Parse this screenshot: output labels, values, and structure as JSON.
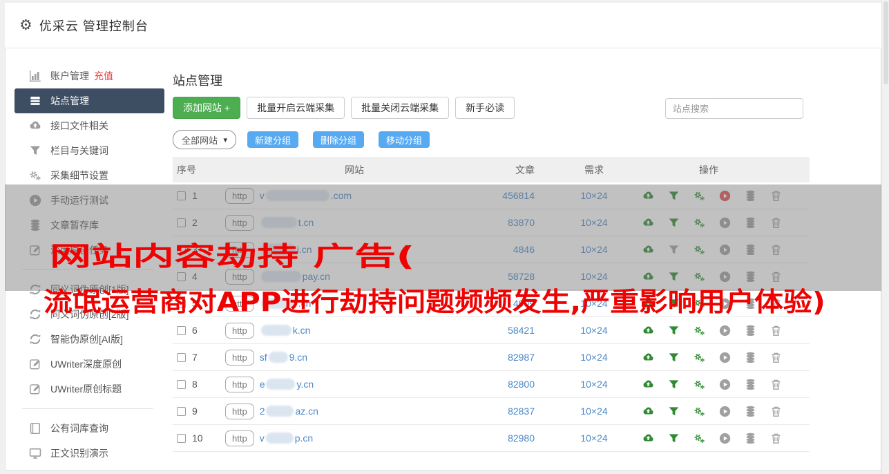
{
  "topbar": {
    "title": "优采云 管理控制台"
  },
  "sidebar": {
    "sections": [
      {
        "items": [
          {
            "icon": "bar-chart",
            "label": "账户管理",
            "extra": "充值"
          },
          {
            "icon": "list",
            "label": "站点管理",
            "active": true
          },
          {
            "icon": "cloud-upload",
            "label": "接口文件相关"
          },
          {
            "icon": "filter",
            "label": "栏目与关键词"
          },
          {
            "icon": "gears",
            "label": "采集细节设置"
          },
          {
            "icon": "play",
            "label": "手动运行测试"
          },
          {
            "icon": "database",
            "label": "文章暂存库"
          },
          {
            "icon": "edit",
            "label": "深度原创任务"
          }
        ]
      },
      {
        "items": [
          {
            "icon": "sync",
            "label": "同义词伪原创[1版]"
          },
          {
            "icon": "sync",
            "label": "同义词伪原创[2版]"
          },
          {
            "icon": "sync",
            "label": "智能伪原创[AI版]"
          },
          {
            "icon": "edit",
            "label": "UWriter深度原创"
          },
          {
            "icon": "edit",
            "label": "UWriter原创标题"
          }
        ]
      },
      {
        "items": [
          {
            "icon": "book",
            "label": "公有词库查询"
          },
          {
            "icon": "monitor",
            "label": "正文识别演示"
          }
        ]
      }
    ]
  },
  "main": {
    "page_title": "站点管理",
    "toolbar": {
      "add_site": "添加网站 +",
      "batch_open": "批量开启云端采集",
      "batch_close": "批量关闭云端采集",
      "newbie": "新手必读",
      "search_placeholder": "站点搜索"
    },
    "group_bar": {
      "filter_selected": "全部网站",
      "new_group": "新建分组",
      "delete_group": "删除分组",
      "move_group": "移动分组"
    },
    "table": {
      "columns": [
        "序号",
        "网站",
        "文章",
        "需求",
        "操作"
      ],
      "protocol_badge": "http",
      "action_icon_names": [
        "cloud-upload",
        "filter",
        "gears",
        "play",
        "database",
        "trash"
      ],
      "rows": [
        {
          "num": "1",
          "url_prefix": "v",
          "mask_w": 92,
          "url_suffix": ".com",
          "articles": "456814",
          "demand": "10×24",
          "play": "red",
          "filter": "green"
        },
        {
          "num": "2",
          "url_prefix": "",
          "mask_w": 52,
          "url_suffix": "t.cn",
          "articles": "83870",
          "demand": "10×24",
          "play": "gray",
          "filter": "green"
        },
        {
          "num": "3",
          "url_prefix": "",
          "mask_w": 50,
          "url_suffix": "i.cn",
          "articles": "4846",
          "demand": "10×24",
          "play": "gray",
          "filter": "gray"
        },
        {
          "num": "4",
          "url_prefix": "",
          "mask_w": 58,
          "url_suffix": "pay.cn",
          "articles": "58728",
          "demand": "10×24",
          "play": "gray",
          "filter": "green"
        },
        {
          "num": "5",
          "url_prefix": "",
          "mask_w": 52,
          "url_suffix": ".cn",
          "articles": "4909",
          "demand": "10×24",
          "play": "gray",
          "filter": "green"
        },
        {
          "num": "6",
          "url_prefix": "",
          "mask_w": 44,
          "url_suffix": "k.cn",
          "articles": "58421",
          "demand": "10×24",
          "play": "gray",
          "filter": "green"
        },
        {
          "num": "7",
          "url_prefix": "sf",
          "mask_w": 28,
          "url_suffix": "9.cn",
          "articles": "82987",
          "demand": "10×24",
          "play": "gray",
          "filter": "green"
        },
        {
          "num": "8",
          "url_prefix": "e",
          "mask_w": 42,
          "url_suffix": "y.cn",
          "articles": "82800",
          "demand": "10×24",
          "play": "gray",
          "filter": "green"
        },
        {
          "num": "9",
          "url_prefix": "2",
          "mask_w": 40,
          "url_suffix": "az.cn",
          "articles": "82837",
          "demand": "10×24",
          "play": "gray",
          "filter": "green"
        },
        {
          "num": "10",
          "url_prefix": "v",
          "mask_w": 40,
          "url_suffix": "p.cn",
          "articles": "82980",
          "demand": "10×24",
          "play": "gray",
          "filter": "green"
        }
      ]
    }
  },
  "overlay": {
    "line1": "网站内容劫持 广告(",
    "line2": "流氓运营商对APP进行劫持问题频频发生,严重影响用户体验)",
    "color": "#ee0202"
  },
  "colors": {
    "accent_green": "#4cae50",
    "accent_blue": "#57aaf2",
    "link_blue": "#4a87c7",
    "danger_red": "#ee0202",
    "sidebar_active_bg": "#3d4d62",
    "icon_green": "#2f8a33",
    "icon_gray": "#a0a0a0",
    "icon_red": "#e25050",
    "table_header_bg": "#efefef"
  }
}
